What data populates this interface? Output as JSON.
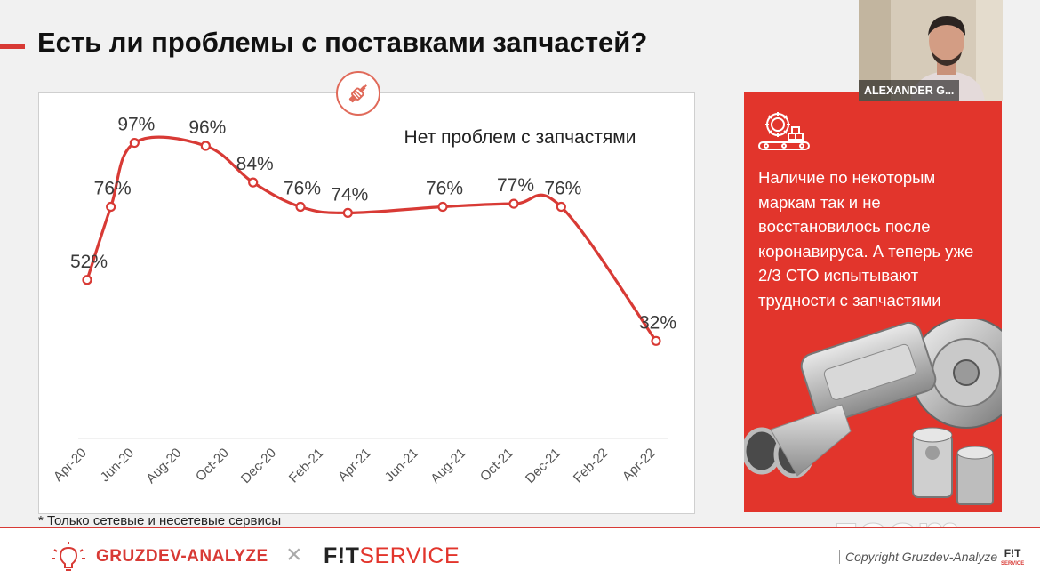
{
  "slide": {
    "title": "Есть ли проблемы с поставками запчастей?",
    "footnote": "* Только сетевые и несетевые сервисы",
    "accent_color": "#d83a35"
  },
  "panel": {
    "text": "Наличие по некоторым маркам так и не восстановилось после коронавируса. А теперь уже 2/3 СТО испытывают трудности с запчастями",
    "background_color": "#e2352c",
    "icon": "gear-conveyor-icon"
  },
  "video": {
    "participant_name": "ALEXANDER G..."
  },
  "footer": {
    "logo1_text": "GRUZDEV-ANALYZE",
    "separator": "×",
    "logo2_fit": "F!T",
    "logo2_service": "SERVICE",
    "copyright": "Copyright Gruzdev-Analyze",
    "mini_logo": "F!T",
    "mini_logo_sub": "SERVICE"
  },
  "watermark": "zoom",
  "chart_data": {
    "type": "line",
    "title": "Нет проблем с запчастями",
    "categories": [
      "Apr-20",
      "Jun-20",
      "Aug-20",
      "Oct-20",
      "Dec-20",
      "Feb-21",
      "Apr-21",
      "Jun-21",
      "Aug-21",
      "Oct-21",
      "Dec-21",
      "Feb-22",
      "Apr-22"
    ],
    "points": [
      {
        "x": "Apr-20",
        "y": 52,
        "label": "52%"
      },
      {
        "x": "May-20",
        "y": 76,
        "label": "76%"
      },
      {
        "x": "Jun-20",
        "y": 97,
        "label": "97%"
      },
      {
        "x": "Sep-20",
        "y": 96,
        "label": "96%"
      },
      {
        "x": "Nov-20",
        "y": 84,
        "label": "84%"
      },
      {
        "x": "Jan-21",
        "y": 76,
        "label": "76%"
      },
      {
        "x": "Mar-21",
        "y": 74,
        "label": "74%"
      },
      {
        "x": "Jul-21",
        "y": 76,
        "label": "76%"
      },
      {
        "x": "Oct-21",
        "y": 77,
        "label": "77%"
      },
      {
        "x": "Dec-21",
        "y": 76,
        "label": "76%"
      },
      {
        "x": "Apr-22",
        "y": 32,
        "label": "32%"
      }
    ],
    "ylim": [
      0,
      110
    ],
    "grid": false,
    "line_color": "#d83a35"
  }
}
